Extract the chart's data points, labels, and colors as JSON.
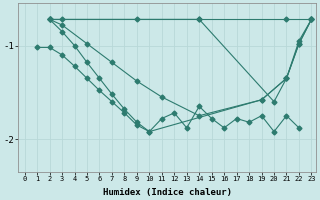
{
  "xlabel": "Humidex (Indice chaleur)",
  "bg_color": "#cce8e8",
  "line_color": "#2d7b6f",
  "grid_color": "#b8d8d8",
  "xlim": [
    -0.5,
    23.4
  ],
  "ylim": [
    -2.35,
    -0.55
  ],
  "yticks": [
    -2,
    -1
  ],
  "xticks": [
    0,
    1,
    2,
    3,
    4,
    5,
    6,
    7,
    8,
    9,
    10,
    11,
    12,
    13,
    14,
    15,
    16,
    17,
    18,
    19,
    20,
    21,
    22,
    23
  ],
  "lines": [
    {
      "x": [
        2,
        14,
        21,
        23
      ],
      "y": [
        -0.72,
        -0.72,
        -0.72,
        -0.72
      ]
    },
    {
      "x": [
        2,
        3,
        9,
        14,
        20,
        21,
        22,
        23
      ],
      "y": [
        -0.72,
        -0.72,
        -0.72,
        -0.72,
        -1.6,
        -1.35,
        -0.95,
        -0.72
      ]
    },
    {
      "x": [
        2,
        3,
        5,
        7,
        9,
        11,
        14,
        19,
        21,
        22,
        23
      ],
      "y": [
        -0.72,
        -0.78,
        -0.98,
        -1.18,
        -1.38,
        -1.55,
        -1.75,
        -1.58,
        -1.35,
        -0.98,
        -0.72
      ]
    },
    {
      "x": [
        2,
        3,
        4,
        5,
        6,
        7,
        8,
        9,
        10,
        19,
        21,
        22,
        23
      ],
      "y": [
        -0.72,
        -0.85,
        -1.0,
        -1.18,
        -1.35,
        -1.52,
        -1.68,
        -1.82,
        -1.92,
        -1.58,
        -1.35,
        -0.98,
        -0.72
      ]
    },
    {
      "x": [
        1,
        2,
        3,
        4,
        5,
        6,
        7,
        8,
        9,
        10,
        11,
        12,
        13,
        14,
        15,
        16,
        17,
        18,
        19,
        20,
        21,
        22
      ],
      "y": [
        -1.02,
        -1.02,
        -1.1,
        -1.22,
        -1.35,
        -1.48,
        -1.6,
        -1.72,
        -1.85,
        -1.92,
        -1.78,
        -1.72,
        -1.88,
        -1.65,
        -1.78,
        -1.88,
        -1.78,
        -1.82,
        -1.75,
        -1.92,
        -1.75,
        -1.88
      ]
    }
  ]
}
